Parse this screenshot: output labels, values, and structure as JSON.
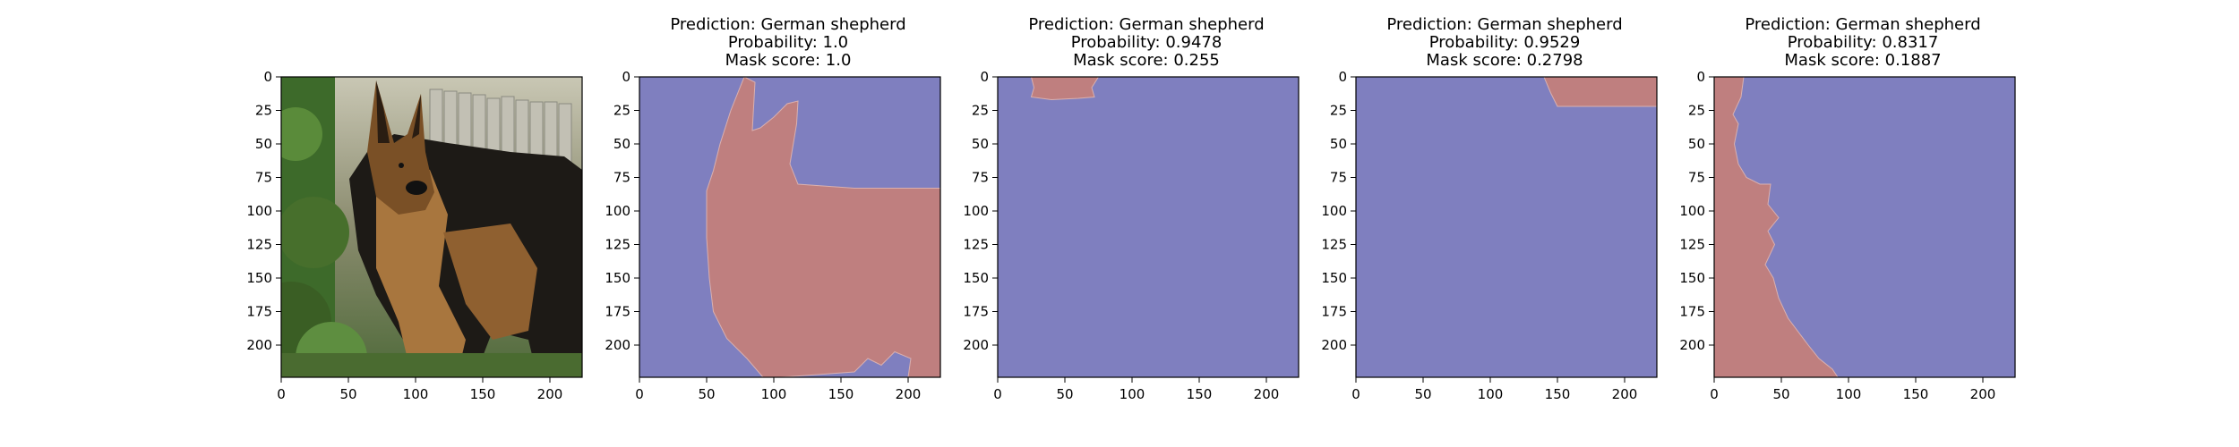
{
  "axis": {
    "xmax": 224,
    "ymax": 224,
    "xticks": [
      0,
      50,
      100,
      150,
      200
    ],
    "yticks": [
      0,
      25,
      50,
      75,
      100,
      125,
      150,
      175,
      200
    ]
  },
  "colors": {
    "mask_on": "#bf7f7f",
    "mask_off": "#7f7fbf"
  },
  "panels": [
    {
      "kind": "image",
      "image_subject": "German shepherd dog standing in a garden",
      "title_lines": []
    },
    {
      "kind": "mask",
      "title_lines": [
        "Prediction: German shepherd",
        "Probability: 1.0",
        "Mask score: 1.0"
      ],
      "mask": [
        [
          78,
          0
        ],
        [
          86,
          4
        ],
        [
          84,
          40
        ],
        [
          90,
          38
        ],
        [
          100,
          30
        ],
        [
          110,
          20
        ],
        [
          118,
          18
        ],
        [
          117,
          35
        ],
        [
          112,
          65
        ],
        [
          118,
          80
        ],
        [
          160,
          83
        ],
        [
          224,
          83
        ],
        [
          224,
          224
        ],
        [
          200,
          224
        ],
        [
          202,
          210
        ],
        [
          190,
          205
        ],
        [
          180,
          215
        ],
        [
          170,
          210
        ],
        [
          160,
          220
        ],
        [
          105,
          224
        ],
        [
          92,
          224
        ],
        [
          80,
          210
        ],
        [
          65,
          195
        ],
        [
          55,
          175
        ],
        [
          52,
          150
        ],
        [
          50,
          120
        ],
        [
          50,
          85
        ],
        [
          55,
          70
        ],
        [
          60,
          50
        ],
        [
          68,
          25
        ]
      ]
    },
    {
      "kind": "mask",
      "title_lines": [
        "Prediction: German shepherd",
        "Probability: 0.9478",
        "Mask score: 0.255"
      ],
      "mask": [
        [
          25,
          0
        ],
        [
          75,
          0
        ],
        [
          70,
          8
        ],
        [
          72,
          15
        ],
        [
          60,
          16
        ],
        [
          40,
          17
        ],
        [
          25,
          15
        ],
        [
          27,
          8
        ]
      ]
    },
    {
      "kind": "mask",
      "title_lines": [
        "Prediction: German shepherd",
        "Probability: 0.9529",
        "Mask score: 0.2798"
      ],
      "mask": [
        [
          140,
          0
        ],
        [
          224,
          0
        ],
        [
          224,
          22
        ],
        [
          150,
          22
        ],
        [
          145,
          12
        ]
      ]
    },
    {
      "kind": "mask",
      "title_lines": [
        "Prediction: German shepherd",
        "Probability: 0.8317",
        "Mask score: 0.1887"
      ],
      "mask": [
        [
          0,
          0
        ],
        [
          22,
          0
        ],
        [
          20,
          15
        ],
        [
          14,
          28
        ],
        [
          18,
          35
        ],
        [
          15,
          50
        ],
        [
          18,
          65
        ],
        [
          24,
          75
        ],
        [
          34,
          80
        ],
        [
          42,
          80
        ],
        [
          40,
          95
        ],
        [
          48,
          105
        ],
        [
          40,
          115
        ],
        [
          45,
          125
        ],
        [
          38,
          140
        ],
        [
          44,
          150
        ],
        [
          48,
          165
        ],
        [
          55,
          180
        ],
        [
          70,
          200
        ],
        [
          78,
          210
        ],
        [
          88,
          218
        ],
        [
          92,
          224
        ],
        [
          0,
          224
        ]
      ]
    }
  ]
}
